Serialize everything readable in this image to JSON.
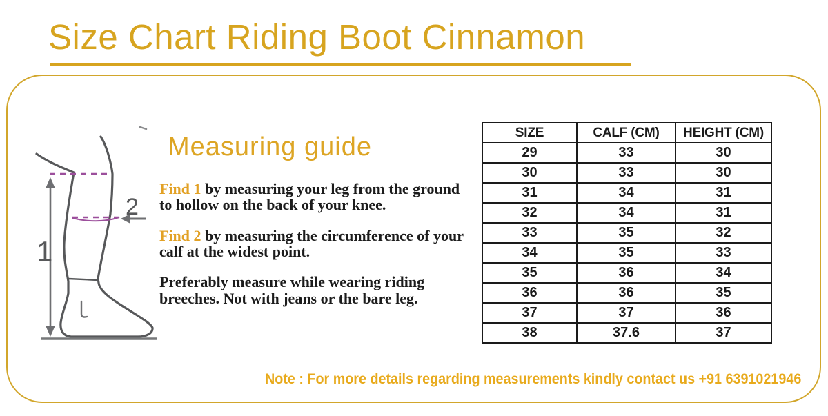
{
  "title": "Size Chart Riding Boot Cinnamon",
  "colors": {
    "gold_title": "#D7A41F",
    "gold_border": "#D2A62B",
    "gold_note": "#E8AA1C",
    "gold_find": "#E2A125",
    "purple_dash": "#9C4F9C",
    "leg_gray": "#57585A",
    "text_ink": "#1C1C1C"
  },
  "guide": {
    "heading": "Measuring guide",
    "paragraphs": [
      {
        "lead": "Find 1",
        "text": " by measuring your leg from the ground to hollow on the back of your knee."
      },
      {
        "lead": "Find 2",
        "text": " by measuring the circumference of your calf at the widest point."
      },
      {
        "lead": "",
        "text": "Preferably measure while wearing riding breeches. Not with jeans or the bare leg."
      }
    ],
    "diagram": {
      "height_label": "1",
      "calf_label": "2"
    }
  },
  "size_table": {
    "headers": [
      "SIZE",
      "CALF (CM)",
      "HEIGHT (CM)"
    ],
    "rows": [
      [
        "29",
        "33",
        "30"
      ],
      [
        "30",
        "33",
        "30"
      ],
      [
        "31",
        "34",
        "31"
      ],
      [
        "32",
        "34",
        "31"
      ],
      [
        "33",
        "35",
        "32"
      ],
      [
        "34",
        "35",
        "33"
      ],
      [
        "35",
        "36",
        "34"
      ],
      [
        "36",
        "36",
        "35"
      ],
      [
        "37",
        "37",
        "36"
      ],
      [
        "38",
        "37.6",
        "37"
      ]
    ]
  },
  "note": "Note : For more details regarding measurements kindly contact us +91 6391021946"
}
